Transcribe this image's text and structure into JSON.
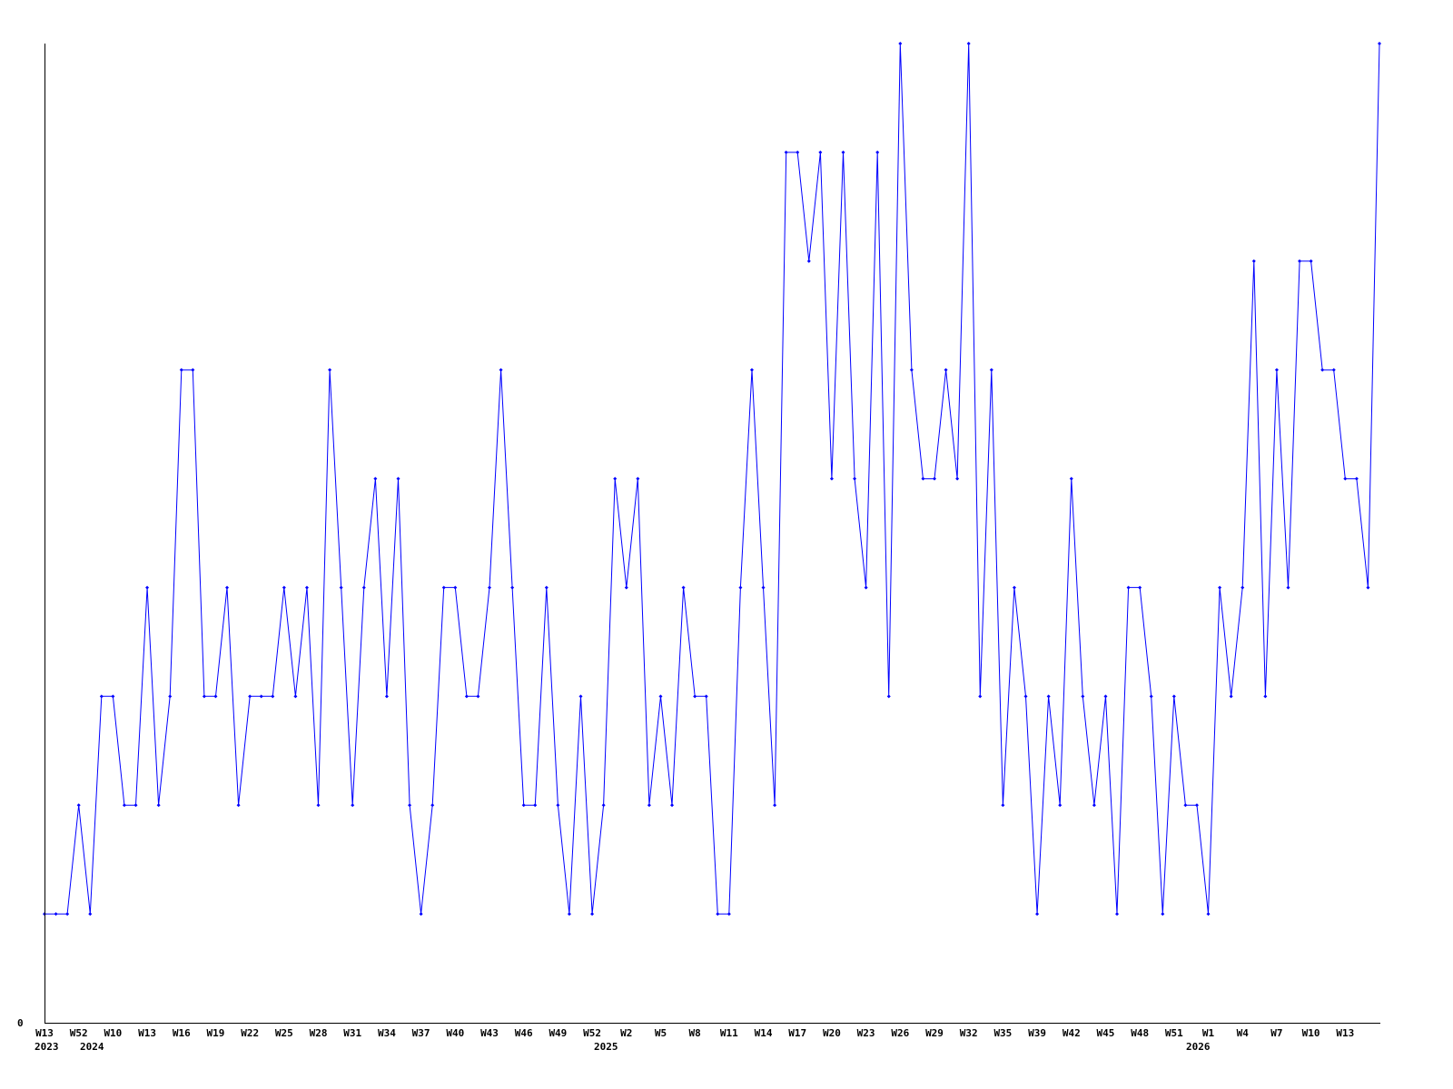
{
  "chart_data": {
    "type": "line",
    "title": "",
    "xlabel": "",
    "ylabel": "",
    "ylim": [
      0,
      9
    ],
    "y_tick_labels": [
      "0"
    ],
    "grid": false,
    "legend": "none",
    "line_color": "#0000ff",
    "axis_color": "#000000",
    "x_tick_labels": [
      "W13",
      "W52",
      "W10",
      "W13",
      "W16",
      "W19",
      "W22",
      "W25",
      "W28",
      "W31",
      "W34",
      "W37",
      "W40",
      "W43",
      "W46",
      "W49",
      "W52",
      "W2",
      "W5",
      "W8",
      "W11",
      "W14",
      "W17",
      "W20",
      "W23",
      "W26",
      "W29",
      "W32",
      "W35",
      "W39",
      "W42",
      "W45",
      "W48",
      "W51",
      "W1",
      "W4",
      "W7",
      "W10",
      "W13"
    ],
    "year_labels": [
      "2023",
      "2024",
      "2025",
      "2026"
    ],
    "series": [
      {
        "values": [
          1,
          1,
          1,
          2,
          1,
          3,
          3,
          2,
          2,
          4,
          2,
          3,
          6,
          6,
          3,
          3,
          4,
          2,
          3,
          3,
          3,
          4,
          3,
          4,
          2,
          6,
          4,
          2,
          4,
          5,
          3,
          5,
          2,
          1,
          2,
          4,
          4,
          3,
          3,
          4,
          6,
          4,
          2,
          2,
          4,
          2,
          1,
          3,
          1,
          2,
          5,
          4,
          5,
          2,
          3,
          2,
          4,
          3,
          3,
          1,
          1,
          4,
          6,
          4,
          2,
          8,
          8,
          7,
          8,
          5,
          8,
          5,
          4,
          8,
          3,
          9,
          6,
          5,
          5,
          6,
          5,
          9,
          3,
          6,
          2,
          4,
          3,
          1,
          3,
          2,
          5,
          3,
          2,
          3,
          1,
          4,
          4,
          3,
          1,
          3,
          2,
          2,
          1,
          4,
          3,
          4,
          7,
          3,
          6,
          4,
          7,
          7,
          6,
          6,
          5,
          5,
          4,
          9
        ]
      }
    ]
  }
}
